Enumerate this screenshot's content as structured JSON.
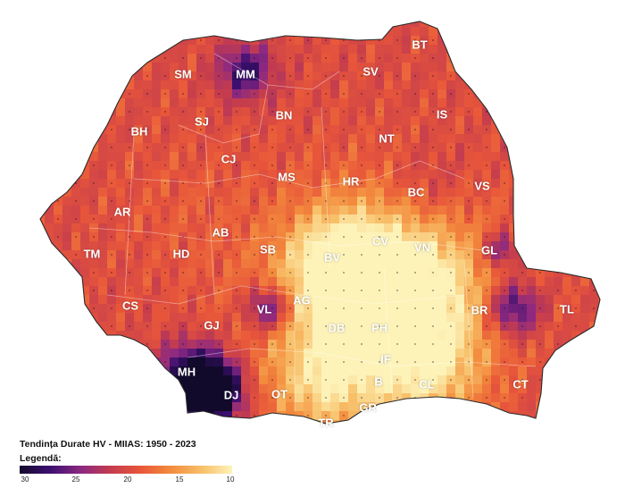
{
  "title": "Tendința Durate HV - MIIAS: 1950 - 2023",
  "legend": {
    "label": "Legendă:",
    "ticks": [
      "30",
      "25",
      "20",
      "15",
      "10"
    ],
    "colors": [
      "#120a2b",
      "#3b0f6f",
      "#8c2981",
      "#c43c4e",
      "#e8563a",
      "#f38b3d",
      "#f8c06a",
      "#fdf3b8"
    ]
  },
  "counties": [
    {
      "code": "BT"
    },
    {
      "code": "SM"
    },
    {
      "code": "MM"
    },
    {
      "code": "SV"
    },
    {
      "code": "IS"
    },
    {
      "code": "SJ"
    },
    {
      "code": "BN"
    },
    {
      "code": "BH"
    },
    {
      "code": "NT"
    },
    {
      "code": "CJ"
    },
    {
      "code": "MS"
    },
    {
      "code": "HR"
    },
    {
      "code": "BC"
    },
    {
      "code": "VS"
    },
    {
      "code": "AR"
    },
    {
      "code": "AB"
    },
    {
      "code": "CV"
    },
    {
      "code": "SB"
    },
    {
      "code": "VN"
    },
    {
      "code": "GL"
    },
    {
      "code": "TM"
    },
    {
      "code": "HD"
    },
    {
      "code": "BV"
    },
    {
      "code": "CS"
    },
    {
      "code": "VL"
    },
    {
      "code": "AG"
    },
    {
      "code": "BR"
    },
    {
      "code": "TL"
    },
    {
      "code": "GJ"
    },
    {
      "code": "DB"
    },
    {
      "code": "PH"
    },
    {
      "code": "MH"
    },
    {
      "code": "IF"
    },
    {
      "code": "DJ"
    },
    {
      "code": "OT"
    },
    {
      "code": "B"
    },
    {
      "code": "CL"
    },
    {
      "code": "CT"
    },
    {
      "code": "GR"
    },
    {
      "code": "TR"
    }
  ]
}
